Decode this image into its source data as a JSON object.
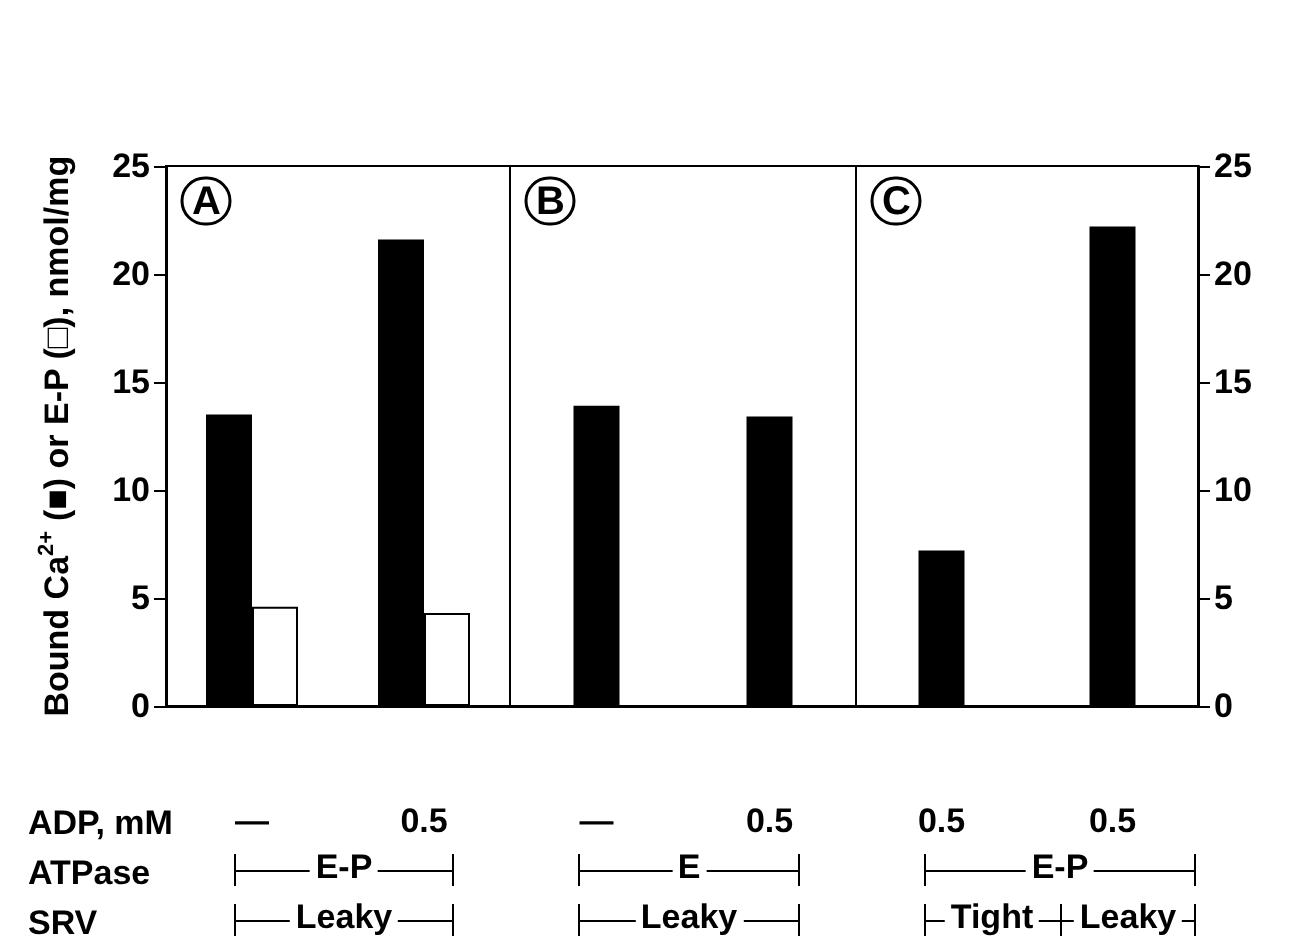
{
  "chart_data": [
    {
      "type": "bar",
      "title": "A",
      "ylabel": "Bound Ca$^{2+}$ (■) or E-P (□), nmol/mg",
      "xlabel": "ADP, mM\nATPase\nSRV",
      "categories": [
        "—",
        "0.5"
      ],
      "series": [
        {
          "color": "#000000",
          "values": [
            13.5,
            21.6
          ]
        },
        {
          "color": "#ffffff",
          "values": [
            4.6,
            4.3
          ]
        }
      ],
      "ylim": [
        0,
        25
      ],
      "yticks": [
        0,
        5,
        10,
        15,
        20,
        25
      ],
      "annotations": [
        "E-P",
        "Leaky"
      ]
    },
    {
      "type": "bar",
      "title": "B",
      "categories": [
        "—",
        "0.5"
      ],
      "series": [
        {
          "color": "#000000",
          "values": [
            13.9,
            13.4
          ]
        }
      ],
      "ylim": [
        0,
        25
      ],
      "yticks": [
        0,
        5,
        10,
        15,
        20,
        25
      ],
      "tick_labels": "x",
      "annotations": [
        "E",
        "Leaky"
      ]
    },
    {
      "type": "bar",
      "title": "C",
      "categories": [
        "0.5",
        "0.5"
      ],
      "series": [
        {
          "color": "#000000",
          "values": [
            7.2,
            22.2
          ],
          "axis": "y2"
        }
      ],
      "y2lim": [
        0,
        25
      ],
      "y2ticks": [
        0,
        5,
        10,
        15,
        20,
        25
      ],
      "annotations": [
        "E-P",
        "Tight",
        "Leaky"
      ]
    }
  ]
}
